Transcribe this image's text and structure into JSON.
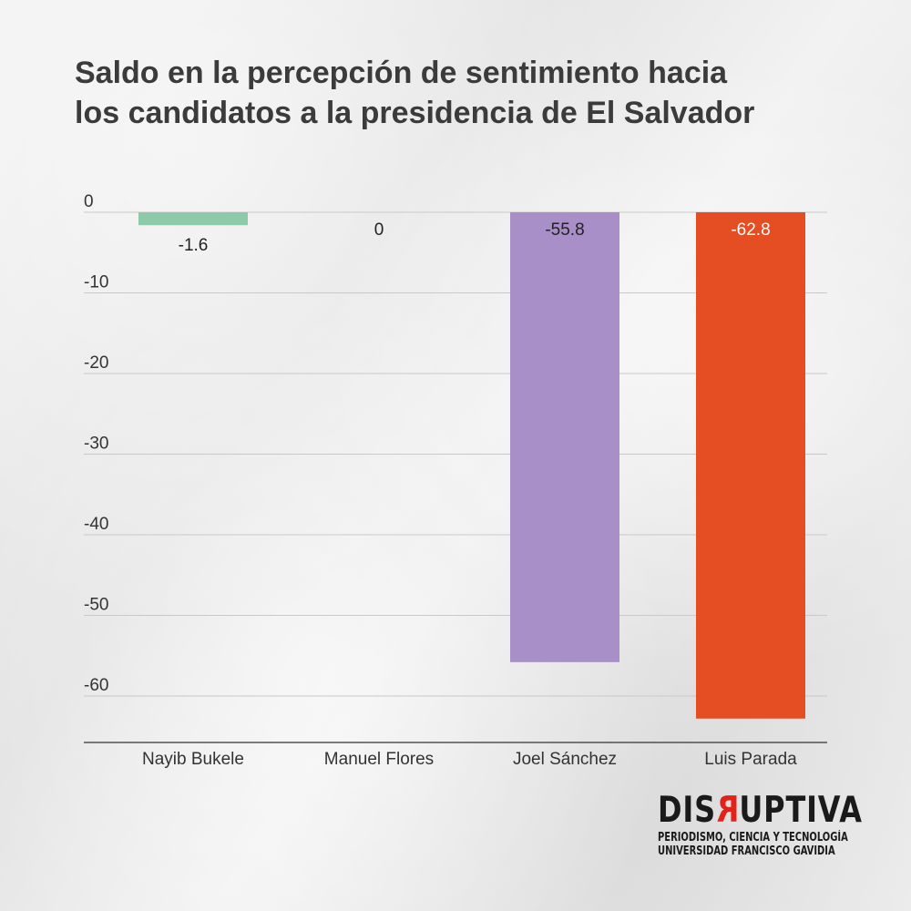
{
  "title": {
    "line1": "Saldo en la percepción de sentimiento hacia",
    "line2": "los candidatos a la presidencia de El Salvador"
  },
  "chart_data": {
    "type": "bar",
    "categories": [
      "Nayib Bukele",
      "Manuel Flores",
      "Joel Sánchez",
      "Luis Parada"
    ],
    "values": [
      -1.6,
      0,
      -55.8,
      -62.8
    ],
    "value_labels": [
      "-1.6",
      "0",
      "-55.8",
      "-62.8"
    ],
    "colors": [
      "#8dcaa7",
      "#8dcaa7",
      "#a98fc8",
      "#e54d22"
    ],
    "label_colors": [
      "#222222",
      "#222222",
      "#222222",
      "#ffffff"
    ],
    "yticks": [
      0,
      -10,
      -20,
      -30,
      -40,
      -50,
      -60
    ],
    "ytick_labels": [
      "0",
      "-10",
      "-20",
      "-30",
      "-40",
      "-50",
      "-60"
    ],
    "ylim": [
      -66,
      0
    ],
    "grid": true,
    "xlabel": "",
    "ylabel": ""
  },
  "logo": {
    "word_pre": "DIS",
    "word_accent": "R",
    "word_post": "UPTIVA",
    "line1": "PERIODISMO, CIENCIA Y TECNOLOGÍA",
    "line2": "UNIVERSIDAD FRANCISCO GAVIDIA"
  }
}
